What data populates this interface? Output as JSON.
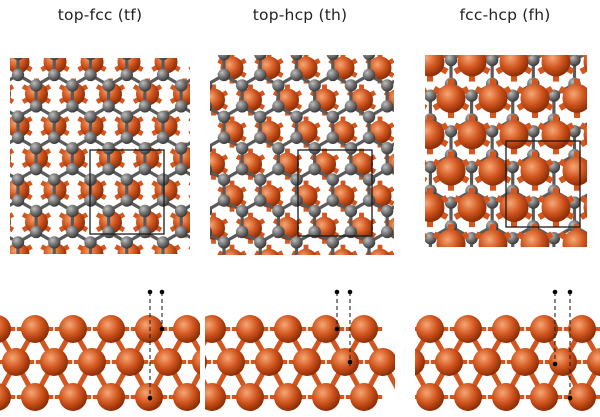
{
  "colors": {
    "background": "#ffffff",
    "copper": "#d2561f",
    "copper_dark": "#8d2e06",
    "copper_light": "#f39a6a",
    "carbon": "#6e6e6e",
    "carbon_dark": "#3c3c3c",
    "carbon_light": "#b5b5b5",
    "bond": "#5a5a5a",
    "unit_cell_line": "#1a1a1a",
    "dashed_line": "#222222",
    "marker_dot": "#000000",
    "title_text": "#222222"
  },
  "panels": [
    {
      "id": "tf",
      "title": "top-fcc (tf)",
      "layout": "copper-under-carbon-ring-top-sites"
    },
    {
      "id": "th",
      "title": "top-hcp (th)",
      "layout": "copper-under-carbon-ring-top-sites-shifted"
    },
    {
      "id": "fh",
      "title": "fcc-hcp (fh)",
      "layout": "copper-at-ring-centers"
    }
  ],
  "legend": {
    "top_view": "graphene on Cu(111), top view with unit cell",
    "side_view": "side view with dashed registry lines"
  }
}
